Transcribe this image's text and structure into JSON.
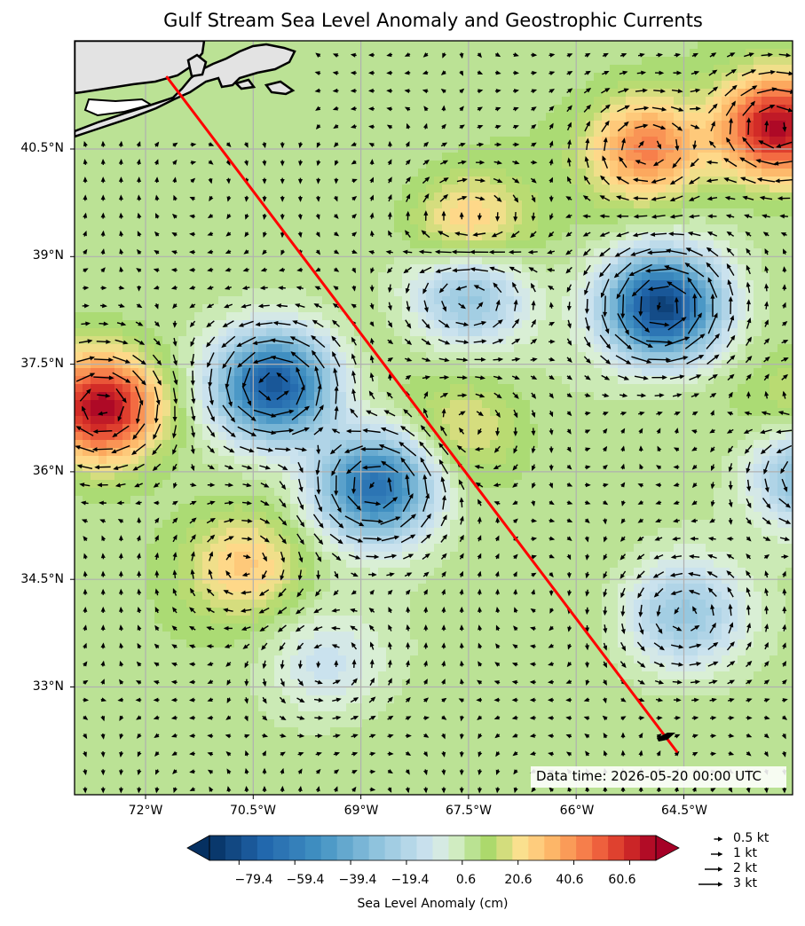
{
  "chart_data": {
    "type": "heatmap",
    "title": "Gulf Stream Sea Level Anomaly and Geostrophic Currents",
    "annotation": "Data time: 2026-05-20 00:00 UTC",
    "x_ticks": [
      "72°W",
      "70.5°W",
      "69°W",
      "67.5°W",
      "66°W",
      "64.5°W"
    ],
    "x_tick_values": [
      -72,
      -70.5,
      -69,
      -67.5,
      -66,
      -64.5
    ],
    "y_ticks": [
      "40.5°N",
      "39°N",
      "37.5°N",
      "36°N",
      "34.5°N",
      "33°N"
    ],
    "y_tick_values": [
      40.5,
      39,
      37.5,
      36,
      34.5,
      33
    ],
    "xlim": [
      -73.0,
      -63.1
    ],
    "ylim": [
      31.5,
      42.0
    ],
    "grid": true,
    "colorbar": {
      "label": "Sea Level Anomaly (cm)",
      "tick_labels": [
        "−79.4",
        "−59.4",
        "−39.4",
        "−19.4",
        "0.6",
        "20.6",
        "40.6",
        "60.6"
      ],
      "tick_values": [
        -79.4,
        -59.4,
        -39.4,
        -19.4,
        0.6,
        20.6,
        40.6,
        60.6
      ],
      "range": [
        -90,
        70
      ],
      "colormap": "RdYlBu_r",
      "extend": "both"
    },
    "anomaly_features": [
      {
        "lon": -70.2,
        "lat": 37.2,
        "value": -80
      },
      {
        "lon": -64.8,
        "lat": 38.3,
        "value": -88
      },
      {
        "lon": -67.5,
        "lat": 38.5,
        "value": -35
      },
      {
        "lon": -68.8,
        "lat": 35.8,
        "value": -70
      },
      {
        "lon": -64.5,
        "lat": 34.0,
        "value": -30
      },
      {
        "lon": -62.7,
        "lat": 36.0,
        "value": -45
      },
      {
        "lon": -69.5,
        "lat": 33.3,
        "value": -15
      },
      {
        "lon": -72.6,
        "lat": 36.9,
        "value": 65
      },
      {
        "lon": -63.2,
        "lat": 40.8,
        "value": 65
      },
      {
        "lon": -65.0,
        "lat": 40.5,
        "value": 40
      },
      {
        "lon": -67.5,
        "lat": 39.4,
        "value": 25
      },
      {
        "lon": -70.6,
        "lat": 34.7,
        "value": 22
      },
      {
        "lon": -67.5,
        "lat": 36.6,
        "value": 15
      },
      {
        "lon": -62.6,
        "lat": 36.8,
        "value": 20
      }
    ],
    "transect": {
      "from": {
        "lon": -71.7,
        "lat": 41.5
      },
      "to": {
        "lon": -64.6,
        "lat": 32.1
      },
      "color": "#ff0000"
    },
    "quiver_key": [
      {
        "label": "0.5 kt",
        "speed": 0.5
      },
      {
        "label": "1 kt",
        "speed": 1
      },
      {
        "label": "2 kt",
        "speed": 2
      },
      {
        "label": "3 kt",
        "speed": 3
      }
    ]
  }
}
